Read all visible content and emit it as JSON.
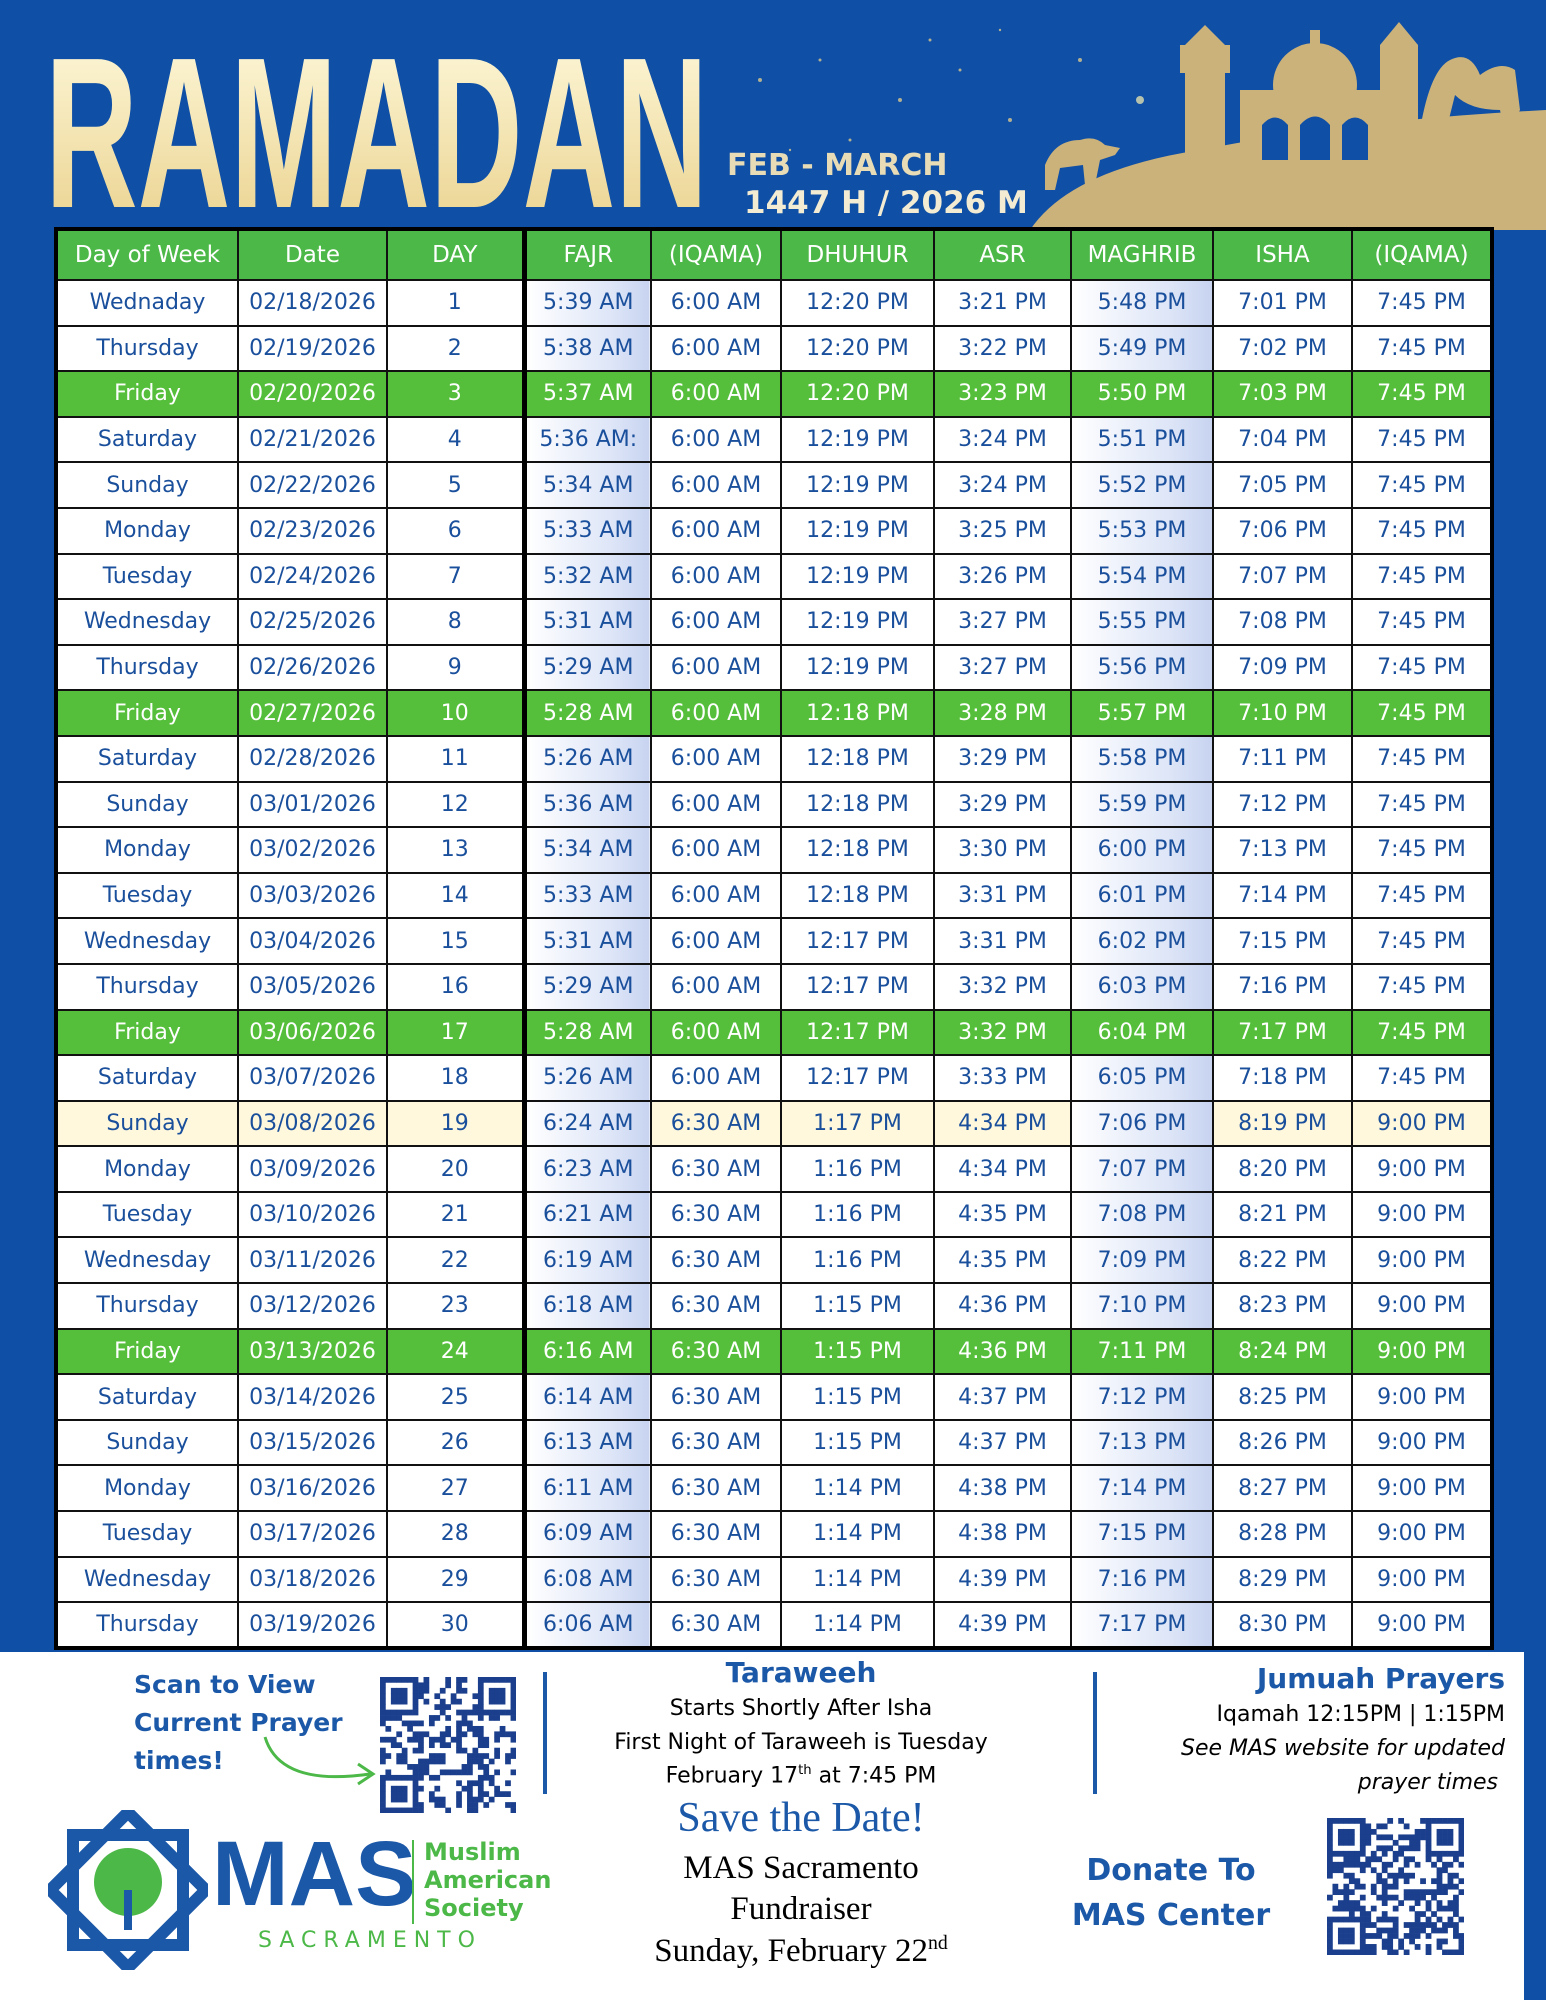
{
  "header": {
    "title": "RAMADAN",
    "subtitle_1": "FEB - MARCH",
    "subtitle_2": "1447 H / 2026 M"
  },
  "table": {
    "headers": [
      "Day of Week",
      "Date",
      "DAY",
      "FAJR",
      "(IQAMA)",
      "DHUHUR",
      "ASR",
      "MAGHRIB",
      "ISHA",
      "(IQAMA)"
    ],
    "rows": [
      [
        "Wednaday",
        "02/18/2026",
        1,
        "5:39 AM",
        "6:00 AM",
        "12:20 PM",
        "3:21 PM",
        "5:48 PM",
        "7:01 PM",
        "7:45 PM"
      ],
      [
        "Thursday",
        "02/19/2026",
        2,
        "5:38 AM",
        "6:00 AM",
        "12:20 PM",
        "3:22 PM",
        "5:49 PM",
        "7:02 PM",
        "7:45 PM"
      ],
      [
        "Friday",
        "02/20/2026",
        3,
        "5:37 AM",
        "6:00 AM",
        "12:20 PM",
        "3:23 PM",
        "5:50 PM",
        "7:03 PM",
        "7:45 PM"
      ],
      [
        "Saturday",
        "02/21/2026",
        4,
        "5:36 AM:",
        "6:00 AM",
        "12:19 PM",
        "3:24 PM",
        "5:51 PM",
        "7:04 PM",
        "7:45 PM"
      ],
      [
        "Sunday",
        "02/22/2026",
        5,
        "5:34 AM",
        "6:00 AM",
        "12:19 PM",
        "3:24 PM",
        "5:52 PM",
        "7:05 PM",
        "7:45 PM"
      ],
      [
        "Monday",
        "02/23/2026",
        6,
        "5:33 AM",
        "6:00 AM",
        "12:19 PM",
        "3:25 PM",
        "5:53 PM",
        "7:06 PM",
        "7:45 PM"
      ],
      [
        "Tuesday",
        "02/24/2026",
        7,
        "5:32 AM",
        "6:00 AM",
        "12:19 PM",
        "3:26 PM",
        "5:54 PM",
        "7:07 PM",
        "7:45 PM"
      ],
      [
        "Wednesday",
        "02/25/2026",
        8,
        "5:31 AM",
        "6:00 AM",
        "12:19 PM",
        "3:27 PM",
        "5:55 PM",
        "7:08 PM",
        "7:45 PM"
      ],
      [
        "Thursday",
        "02/26/2026",
        9,
        "5:29 AM",
        "6:00 AM",
        "12:19 PM",
        "3:27 PM",
        "5:56 PM",
        "7:09 PM",
        "7:45 PM"
      ],
      [
        "Friday",
        "02/27/2026",
        10,
        "5:28 AM",
        "6:00 AM",
        "12:18 PM",
        "3:28 PM",
        "5:57 PM",
        "7:10 PM",
        "7:45 PM"
      ],
      [
        "Saturday",
        "02/28/2026",
        11,
        "5:26 AM",
        "6:00 AM",
        "12:18 PM",
        "3:29 PM",
        "5:58 PM",
        "7:11 PM",
        "7:45 PM"
      ],
      [
        "Sunday",
        "03/01/2026",
        12,
        "5:36 AM",
        "6:00 AM",
        "12:18 PM",
        "3:29 PM",
        "5:59 PM",
        "7:12 PM",
        "7:45 PM"
      ],
      [
        "Monday",
        "03/02/2026",
        13,
        "5:34 AM",
        "6:00 AM",
        "12:18 PM",
        "3:30 PM",
        "6:00 PM",
        "7:13 PM",
        "7:45 PM"
      ],
      [
        "Tuesday",
        "03/03/2026",
        14,
        "5:33 AM",
        "6:00 AM",
        "12:18 PM",
        "3:31 PM",
        "6:01 PM",
        "7:14 PM",
        "7:45 PM"
      ],
      [
        "Wednesday",
        "03/04/2026",
        15,
        "5:31 AM",
        "6:00 AM",
        "12:17 PM",
        "3:31 PM",
        "6:02 PM",
        "7:15 PM",
        "7:45 PM"
      ],
      [
        "Thursday",
        "03/05/2026",
        16,
        "5:29 AM",
        "6:00 AM",
        "12:17 PM",
        "3:32 PM",
        "6:03 PM",
        "7:16 PM",
        "7:45 PM"
      ],
      [
        "Friday",
        "03/06/2026",
        17,
        "5:28 AM",
        "6:00 AM",
        "12:17 PM",
        "3:32 PM",
        "6:04 PM",
        "7:17 PM",
        "7:45 PM"
      ],
      [
        "Saturday",
        "03/07/2026",
        18,
        "5:26 AM",
        "6:00 AM",
        "12:17 PM",
        "3:33 PM",
        "6:05 PM",
        "7:18 PM",
        "7:45 PM"
      ],
      [
        "Sunday",
        "03/08/2026",
        19,
        "6:24 AM",
        "6:30 AM",
        "1:17 PM",
        "4:34 PM",
        "7:06 PM",
        "8:19 PM",
        "9:00 PM"
      ],
      [
        "Monday",
        "03/09/2026",
        20,
        "6:23 AM",
        "6:30 AM",
        "1:16 PM",
        "4:34 PM",
        "7:07 PM",
        "8:20 PM",
        "9:00 PM"
      ],
      [
        "Tuesday",
        "03/10/2026",
        21,
        "6:21 AM",
        "6:30 AM",
        "1:16 PM",
        "4:35 PM",
        "7:08 PM",
        "8:21 PM",
        "9:00 PM"
      ],
      [
        "Wednesday",
        "03/11/2026",
        22,
        "6:19 AM",
        "6:30 AM",
        "1:16 PM",
        "4:35 PM",
        "7:09 PM",
        "8:22 PM",
        "9:00 PM"
      ],
      [
        "Thursday",
        "03/12/2026",
        23,
        "6:18 AM",
        "6:30 AM",
        "1:15 PM",
        "4:36 PM",
        "7:10 PM",
        "8:23 PM",
        "9:00 PM"
      ],
      [
        "Friday",
        "03/13/2026",
        24,
        "6:16 AM",
        "6:30 AM",
        "1:15 PM",
        "4:36 PM",
        "7:11 PM",
        "8:24 PM",
        "9:00 PM"
      ],
      [
        "Saturday",
        "03/14/2026",
        25,
        "6:14 AM",
        "6:30 AM",
        "1:15 PM",
        "4:37 PM",
        "7:12 PM",
        "8:25 PM",
        "9:00 PM"
      ],
      [
        "Sunday",
        "03/15/2026",
        26,
        "6:13 AM",
        "6:30 AM",
        "1:15 PM",
        "4:37 PM",
        "7:13 PM",
        "8:26 PM",
        "9:00 PM"
      ],
      [
        "Monday",
        "03/16/2026",
        27,
        "6:11 AM",
        "6:30 AM",
        "1:14 PM",
        "4:38 PM",
        "7:14 PM",
        "8:27 PM",
        "9:00 PM"
      ],
      [
        "Tuesday",
        "03/17/2026",
        28,
        "6:09 AM",
        "6:30 AM",
        "1:14 PM",
        "4:38 PM",
        "7:15 PM",
        "8:28 PM",
        "9:00 PM"
      ],
      [
        "Wednesday",
        "03/18/2026",
        29,
        "6:08 AM",
        "6:30 AM",
        "1:14 PM",
        "4:39 PM",
        "7:16 PM",
        "8:29 PM",
        "9:00 PM"
      ],
      [
        "Thursday",
        "03/19/2026",
        30,
        "6:06 AM",
        "6:30 AM",
        "1:14 PM",
        "4:39 PM",
        "7:17 PM",
        "8:30 PM",
        "9:00 PM"
      ]
    ]
  },
  "footer": {
    "scan": [
      "Scan to View",
      "Current Prayer",
      "times!"
    ],
    "taraweeh": {
      "title": "Taraweeh",
      "line_1": "Starts Shortly After Isha",
      "line_2": "First Night of Taraweeh is Tuesday",
      "line_3": [
        "February 17",
        "th",
        "at 7:45 PM"
      ]
    },
    "save_the_date": {
      "title": "Save the Date!",
      "line_1": "MAS Sacramento",
      "line_2": "Fundraiser",
      "line_3": [
        "Sunday, February 22",
        "nd"
      ]
    },
    "jumuah": {
      "title": "Jumuah Prayers",
      "line_1": "Iqamah 12:15PM | 1:15PM",
      "line_2": "See MAS website for updated",
      "line_3": "prayer times"
    },
    "donate": [
      "Donate To",
      "MAS Center"
    ],
    "logo": {
      "name": "MAS",
      "words": [
        "Muslim",
        "American",
        "Society"
      ],
      "city": "SACRAMENTO"
    }
  }
}
